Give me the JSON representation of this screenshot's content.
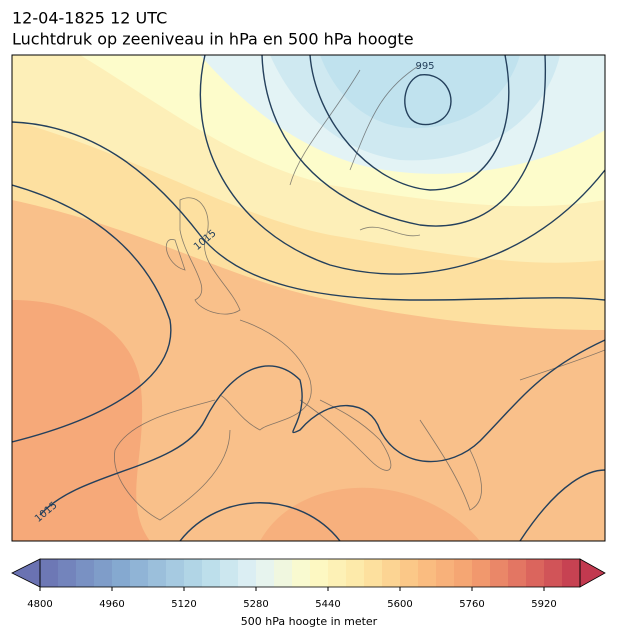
{
  "header": {
    "date": "12-04-1825 12 UTC",
    "title": "Luchtdruk op zeeniveau in hPa en 500 hPa hoogte"
  },
  "map": {
    "contour_labels": [
      "995",
      "1015",
      "1015"
    ]
  },
  "colorbar": {
    "lim": [
      4800,
      6000
    ],
    "ticks": [
      4800,
      4960,
      5120,
      5280,
      5440,
      5600,
      5760,
      5920
    ],
    "label": "500 hPa hoogte in meter"
  }
}
